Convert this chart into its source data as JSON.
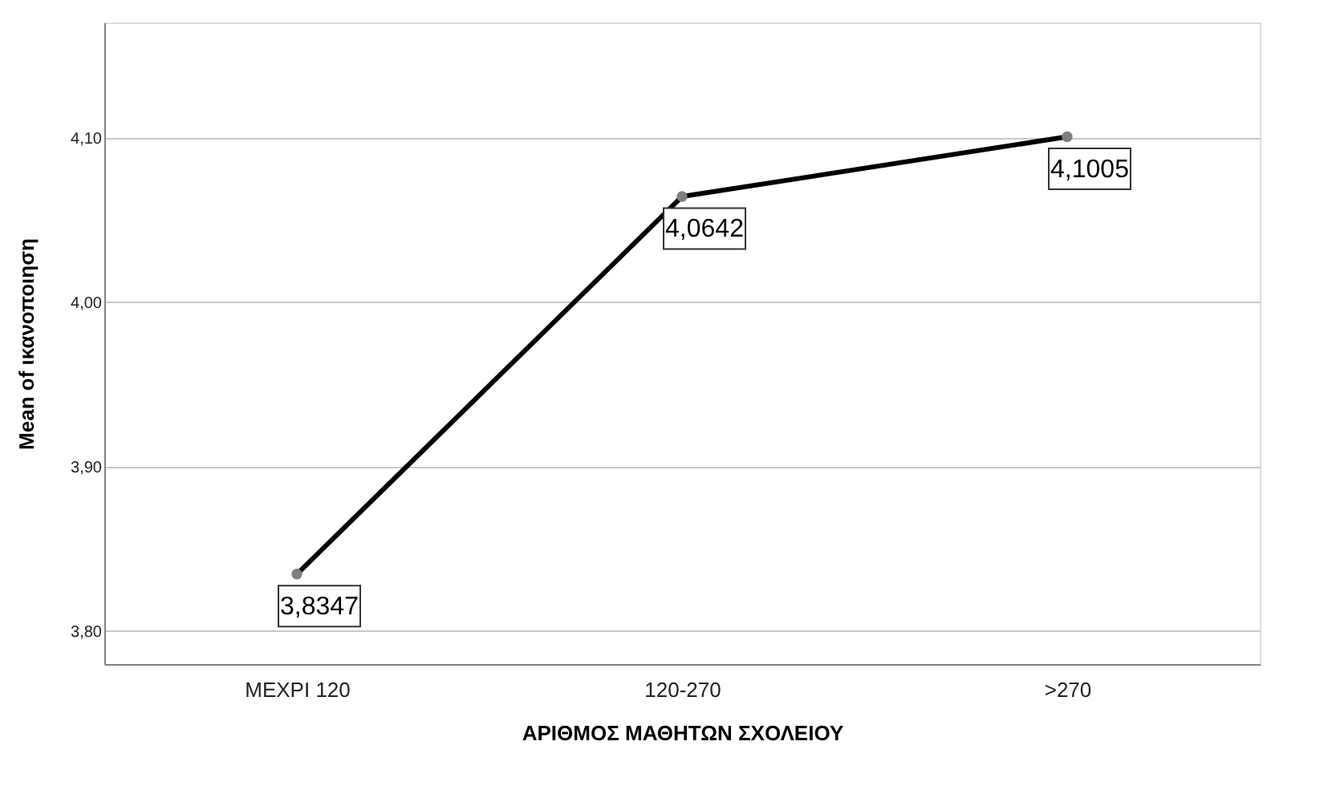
{
  "chart_data": {
    "type": "line",
    "xlabel": "ΑΡΙΘΜΟΣ ΜΑΘΗΤΩΝ ΣΧΟΛΕΙΟΥ",
    "ylabel": "Mean of ικανοποιηση",
    "categories": [
      "ΜΕΧΡΙ 120",
      "120-270",
      ">270"
    ],
    "series": [
      {
        "color": "#000000",
        "values": [
          3.8347,
          4.0642,
          4.1005
        ],
        "value_labels": [
          "3,8347",
          "4,0642",
          "4,1005"
        ]
      }
    ],
    "ylim": [
      3.78,
      4.17
    ],
    "yticks": [
      {
        "value": 3.8,
        "label": "3,80"
      },
      {
        "value": 3.9,
        "label": "3,90"
      },
      {
        "value": 4.0,
        "label": "4,00"
      },
      {
        "value": 4.1,
        "label": "4,10"
      }
    ],
    "grid": "y",
    "marker": "circle",
    "line_style": "solid"
  }
}
